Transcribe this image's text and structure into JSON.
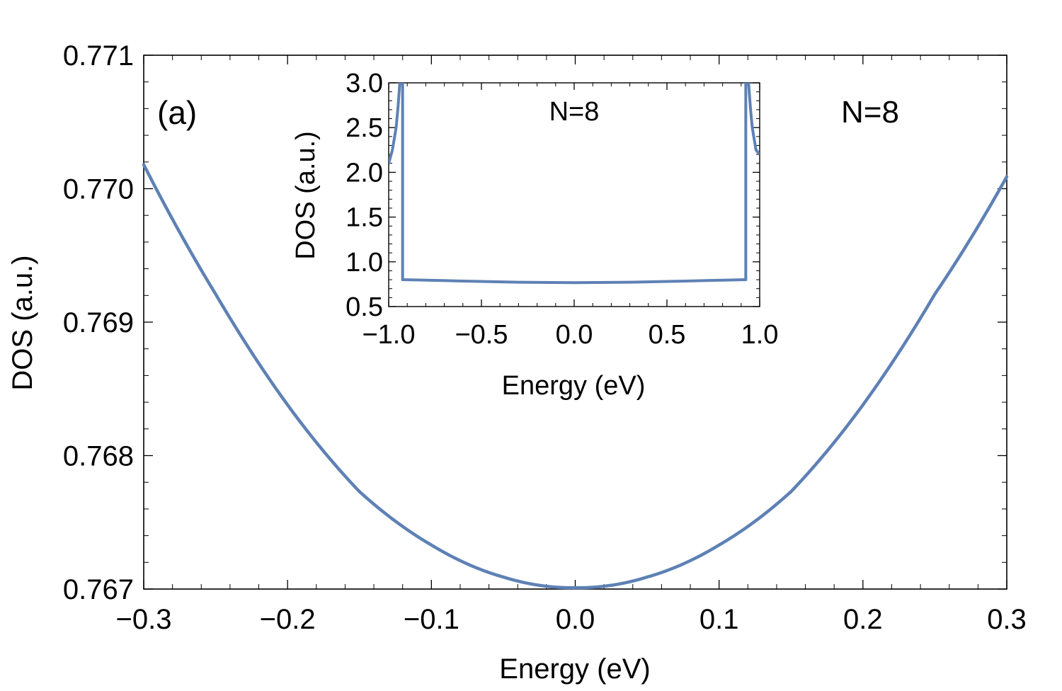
{
  "chart_data": [
    {
      "type": "line",
      "panel_label": "(a)",
      "annotation": "N=8",
      "xlabel": "Energy (eV)",
      "ylabel": "DOS (a.u.)",
      "xlim": [
        -0.3,
        0.3
      ],
      "ylim": [
        0.767,
        0.771
      ],
      "xticks": [
        -0.3,
        -0.2,
        -0.1,
        0.0,
        0.1,
        0.2,
        0.3
      ],
      "xtick_labels": [
        "−0.3",
        "−0.2",
        "−0.1",
        "0.0",
        "0.1",
        "0.2",
        "0.3"
      ],
      "yticks": [
        0.767,
        0.768,
        0.769,
        0.77,
        0.771
      ],
      "ytick_labels": [
        "0.767",
        "0.768",
        "0.769",
        "0.770",
        "0.771"
      ],
      "series": [
        {
          "name": "DOS",
          "color": "#5e81b5",
          "x": [
            -0.3,
            -0.25,
            -0.2,
            -0.15,
            -0.1,
            -0.05,
            0.0,
            0.05,
            0.1,
            0.15,
            0.2,
            0.25,
            0.3
          ],
          "y": [
            0.77018,
            0.76921,
            0.76838,
            0.76773,
            0.76733,
            0.76709,
            0.76701,
            0.76709,
            0.76733,
            0.76773,
            0.76838,
            0.76921,
            0.77009
          ]
        }
      ]
    },
    {
      "type": "line",
      "role": "inset",
      "annotation": "N=8",
      "xlabel": "Energy (eV)",
      "ylabel": "DOS (a.u.)",
      "xlim": [
        -1.0,
        1.0
      ],
      "ylim": [
        0.5,
        3.0
      ],
      "xticks": [
        -1.0,
        -0.5,
        0.0,
        0.5,
        1.0
      ],
      "xtick_labels": [
        "−1.0",
        "−0.5",
        "0.0",
        "0.5",
        "1.0"
      ],
      "yticks": [
        0.5,
        1.0,
        1.5,
        2.0,
        2.5,
        3.0
      ],
      "ytick_labels": [
        "0.5",
        "1.0",
        "1.5",
        "2.0",
        "2.5",
        "3.0"
      ],
      "series": [
        {
          "name": "DOS",
          "color": "#5e81b5",
          "x": [
            -1.0,
            -0.98,
            -0.96,
            -0.95,
            -0.94,
            -0.935,
            -0.925,
            -0.925,
            -0.9,
            -0.6,
            -0.3,
            0.0,
            0.3,
            0.6,
            0.9,
            0.925,
            0.925,
            0.935,
            0.94,
            0.95,
            0.96,
            0.98,
            1.0
          ],
          "y": [
            2.1,
            2.25,
            2.5,
            2.72,
            3.0,
            3.0,
            3.0,
            0.8,
            0.8,
            0.785,
            0.772,
            0.767,
            0.772,
            0.785,
            0.8,
            0.8,
            3.0,
            3.0,
            3.0,
            2.72,
            2.5,
            2.25,
            2.2
          ]
        }
      ]
    }
  ]
}
